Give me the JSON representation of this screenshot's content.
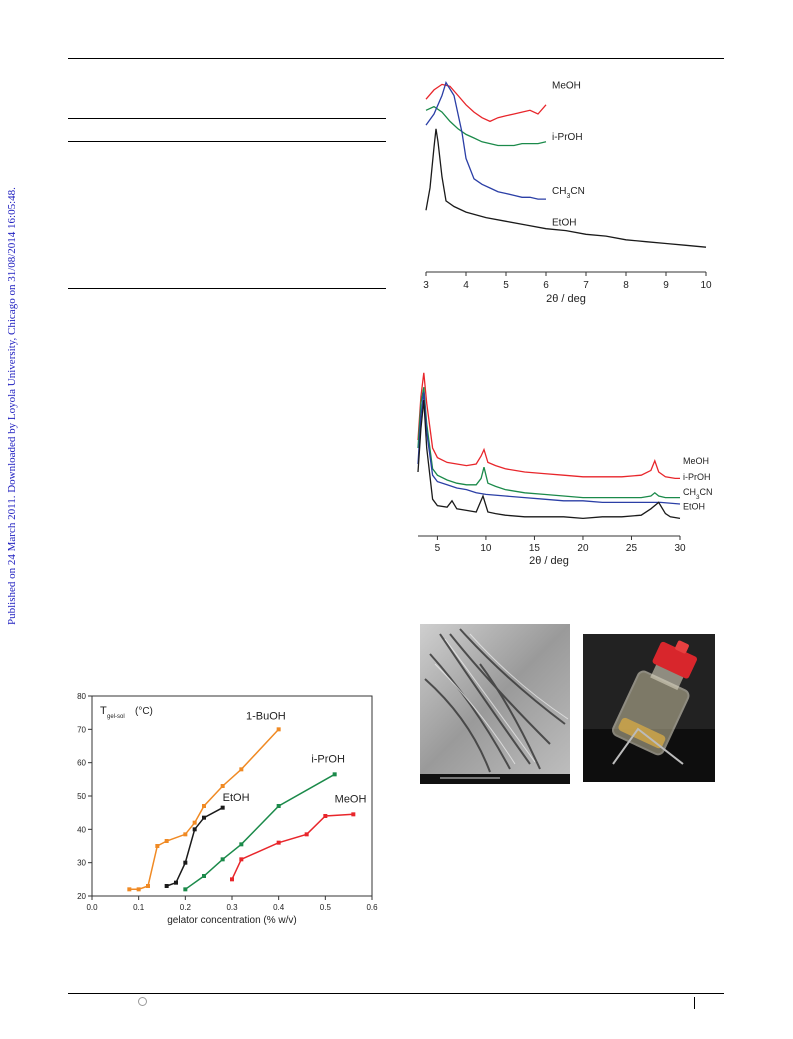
{
  "sidebar": {
    "notice": "Published on 24 March 2011. Downloaded by Loyola University, Chicago on 31/08/2014 16:05:48."
  },
  "colors": {
    "red": "#e8262b",
    "green": "#1b8a4a",
    "blue": "#2b3fa6",
    "black": "#1a1a1a",
    "orange": "#f08a24",
    "magenta": "#e0267e"
  },
  "chart_data": [
    {
      "type": "line",
      "xlabel": "2θ / deg",
      "xlim": [
        3,
        10
      ],
      "x_ticks": [
        "3",
        "4",
        "5",
        "6",
        "7",
        "8",
        "9",
        "10"
      ],
      "series": [
        {
          "name": "MeOH",
          "color": "#e8262b",
          "x": [
            3.0,
            3.2,
            3.4,
            3.6,
            3.8,
            4.0,
            4.2,
            4.4,
            4.6,
            4.8,
            5.0,
            5.2,
            5.4,
            5.6,
            5.8,
            6.0
          ],
          "y": [
            0.88,
            0.93,
            0.96,
            0.95,
            0.9,
            0.85,
            0.81,
            0.78,
            0.76,
            0.78,
            0.79,
            0.8,
            0.81,
            0.82,
            0.8,
            0.85
          ]
        },
        {
          "name": "i-PrOH",
          "color": "#1b8a4a",
          "x": [
            3.0,
            3.2,
            3.4,
            3.6,
            3.8,
            4.0,
            4.2,
            4.4,
            4.6,
            4.8,
            5.0,
            5.2,
            5.4,
            5.6,
            5.8,
            6.0
          ],
          "y": [
            0.82,
            0.84,
            0.81,
            0.76,
            0.72,
            0.69,
            0.67,
            0.65,
            0.64,
            0.63,
            0.63,
            0.63,
            0.64,
            0.64,
            0.64,
            0.65
          ]
        },
        {
          "name": "CH3CN",
          "color": "#2b3fa6",
          "x": [
            3.0,
            3.2,
            3.4,
            3.5,
            3.7,
            3.9,
            4.0,
            4.2,
            4.4,
            4.6,
            4.8,
            5.0,
            5.2,
            5.4,
            5.6,
            5.8,
            6.0
          ],
          "y": [
            0.74,
            0.8,
            0.9,
            0.97,
            0.9,
            0.7,
            0.56,
            0.45,
            0.42,
            0.4,
            0.38,
            0.37,
            0.36,
            0.35,
            0.35,
            0.34,
            0.34
          ]
        },
        {
          "name": "EtOH",
          "color": "#1a1a1a",
          "x": [
            3.0,
            3.1,
            3.2,
            3.25,
            3.3,
            3.4,
            3.5,
            3.7,
            4.0,
            4.5,
            5.0,
            5.5,
            6.0,
            6.5,
            7.0,
            7.5,
            8.0,
            8.5,
            9.0,
            9.5,
            10.0
          ],
          "y": [
            0.28,
            0.4,
            0.62,
            0.72,
            0.65,
            0.46,
            0.33,
            0.3,
            0.27,
            0.24,
            0.22,
            0.2,
            0.18,
            0.17,
            0.15,
            0.14,
            0.12,
            0.11,
            0.1,
            0.09,
            0.08
          ]
        }
      ]
    },
    {
      "type": "line",
      "xlabel": "2θ / deg",
      "xlim": [
        3,
        30
      ],
      "x_ticks": [
        "5",
        "10",
        "15",
        "20",
        "25",
        "30"
      ],
      "series": [
        {
          "name": "MeOH",
          "color": "#e8262b",
          "x": [
            3.0,
            3.3,
            3.6,
            3.9,
            4.5,
            5.0,
            6.0,
            7.0,
            8.0,
            9.0,
            9.5,
            9.8,
            10.2,
            11.0,
            12.0,
            14.0,
            16.0,
            18.0,
            20.0,
            22.0,
            24.0,
            26.0,
            27.0,
            27.4,
            27.8,
            28.5,
            29.5,
            30.0
          ],
          "y": [
            0.55,
            0.82,
            0.97,
            0.78,
            0.5,
            0.44,
            0.41,
            0.4,
            0.39,
            0.4,
            0.45,
            0.49,
            0.41,
            0.39,
            0.37,
            0.35,
            0.34,
            0.33,
            0.32,
            0.32,
            0.32,
            0.33,
            0.36,
            0.42,
            0.35,
            0.32,
            0.31,
            0.31
          ]
        },
        {
          "name": "i-PrOH",
          "color": "#1b8a4a",
          "x": [
            3.0,
            3.3,
            3.6,
            3.9,
            4.5,
            5.0,
            6.0,
            7.0,
            8.0,
            9.0,
            9.5,
            9.8,
            10.2,
            11.0,
            12.0,
            14.0,
            16.0,
            18.0,
            20.0,
            22.0,
            24.0,
            26.0,
            27.0,
            27.4,
            27.8,
            28.5,
            30.0
          ],
          "y": [
            0.5,
            0.78,
            0.88,
            0.65,
            0.37,
            0.33,
            0.3,
            0.28,
            0.27,
            0.27,
            0.31,
            0.38,
            0.28,
            0.26,
            0.24,
            0.22,
            0.21,
            0.2,
            0.19,
            0.19,
            0.19,
            0.19,
            0.2,
            0.22,
            0.2,
            0.19,
            0.19
          ]
        },
        {
          "name": "CH3CN",
          "color": "#2b3fa6",
          "x": [
            3.0,
            3.3,
            3.6,
            3.9,
            4.5,
            5.0,
            6.0,
            7.0,
            8.0,
            9.0,
            10.0,
            12.0,
            14.0,
            16.0,
            18.0,
            20.0,
            22.0,
            24.0,
            26.0,
            28.0,
            30.0
          ],
          "y": [
            0.4,
            0.7,
            0.85,
            0.6,
            0.33,
            0.29,
            0.27,
            0.25,
            0.24,
            0.22,
            0.21,
            0.2,
            0.19,
            0.18,
            0.17,
            0.17,
            0.16,
            0.16,
            0.16,
            0.16,
            0.15
          ]
        },
        {
          "name": "EtOH",
          "color": "#1a1a1a",
          "x": [
            3.0,
            3.3,
            3.6,
            3.9,
            4.5,
            5.0,
            6.0,
            6.5,
            7.0,
            8.0,
            9.0,
            9.7,
            10.2,
            11.0,
            12.0,
            14.0,
            16.0,
            18.0,
            20.0,
            22.0,
            24.0,
            26.0,
            27.0,
            27.8,
            28.5,
            29.0,
            30.0
          ],
          "y": [
            0.35,
            0.62,
            0.8,
            0.5,
            0.18,
            0.14,
            0.13,
            0.17,
            0.12,
            0.11,
            0.1,
            0.2,
            0.1,
            0.09,
            0.08,
            0.07,
            0.07,
            0.07,
            0.06,
            0.07,
            0.07,
            0.08,
            0.12,
            0.16,
            0.09,
            0.07,
            0.06
          ]
        }
      ]
    },
    {
      "type": "line",
      "ylabel": "T",
      "ylabel_sub": "gel-sol",
      "ylabel_unit": "(°C)",
      "xlabel": "gelator concentration (% w/v)",
      "xlim": [
        0.0,
        0.6
      ],
      "ylim": [
        20,
        80
      ],
      "x_ticks": [
        "0.0",
        "0.1",
        "0.2",
        "0.3",
        "0.4",
        "0.5",
        "0.6"
      ],
      "y_ticks": [
        "20",
        "30",
        "40",
        "50",
        "60",
        "70",
        "80"
      ],
      "series": [
        {
          "name": "1-BuOH",
          "color": "#f08a24",
          "x": [
            0.08,
            0.1,
            0.12,
            0.14,
            0.16,
            0.2,
            0.22,
            0.24,
            0.28,
            0.32,
            0.4
          ],
          "y": [
            22,
            22,
            23,
            35,
            36.5,
            38.5,
            42,
            47,
            53,
            58,
            70
          ]
        },
        {
          "name": "EtOH",
          "color": "#1a1a1a",
          "x": [
            0.16,
            0.18,
            0.2,
            0.22,
            0.24,
            0.28
          ],
          "y": [
            23,
            24,
            30,
            40,
            43.5,
            46.5
          ]
        },
        {
          "name": "i-PrOH",
          "color": "#1b8a4a",
          "x": [
            0.2,
            0.24,
            0.28,
            0.32,
            0.4,
            0.52
          ],
          "y": [
            22,
            26,
            31,
            35.5,
            47,
            56.5
          ]
        },
        {
          "name": "MeOH",
          "color": "#e8262b",
          "x": [
            0.3,
            0.32,
            0.4,
            0.46,
            0.5,
            0.56
          ],
          "y": [
            25,
            31,
            36,
            38.5,
            44,
            44.5
          ]
        }
      ]
    }
  ]
}
